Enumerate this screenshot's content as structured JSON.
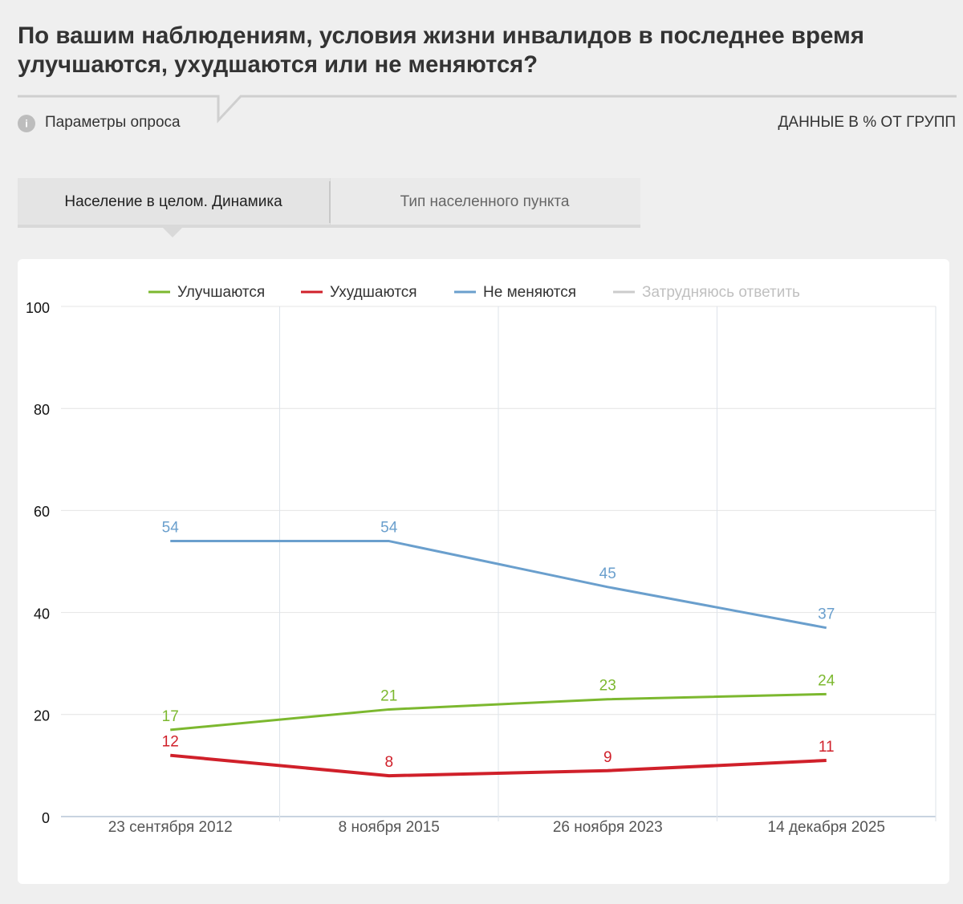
{
  "header": {
    "title": [
      "По вашим наблюдениям, условия жизни инвалидов в последнее время",
      "улучшаются, ухудшаются или не меняются?"
    ],
    "params": "Параметры опроса",
    "units_note": "ДАННЫЕ В % ОТ ГРУПП",
    "tabs": [
      "Население в целом. Динамика",
      "Тип населенного пункта"
    ]
  },
  "chart_data": {
    "type": "line",
    "categories": [
      "23 сентября 2012",
      "8 ноября 2015",
      "26 ноября 2023",
      "14 декабря 2025"
    ],
    "series": [
      {
        "name": "Улучшаются",
        "color": "#7cb82f",
        "values": [
          17,
          21,
          23,
          24
        ]
      },
      {
        "name": "Ухудшаются",
        "color": "#d0202a",
        "values": [
          12,
          8,
          9,
          11
        ]
      },
      {
        "name": "Не меняются",
        "color": "#6a9fcd",
        "values": [
          54,
          54,
          45,
          37
        ]
      },
      {
        "name": "Затрудняюсь ответить",
        "color": "#cccccc",
        "visible": false
      }
    ],
    "ylim": [
      0,
      100
    ],
    "yticks": [
      0,
      20,
      40,
      60,
      80,
      100
    ],
    "grid": true,
    "legend": "top"
  }
}
